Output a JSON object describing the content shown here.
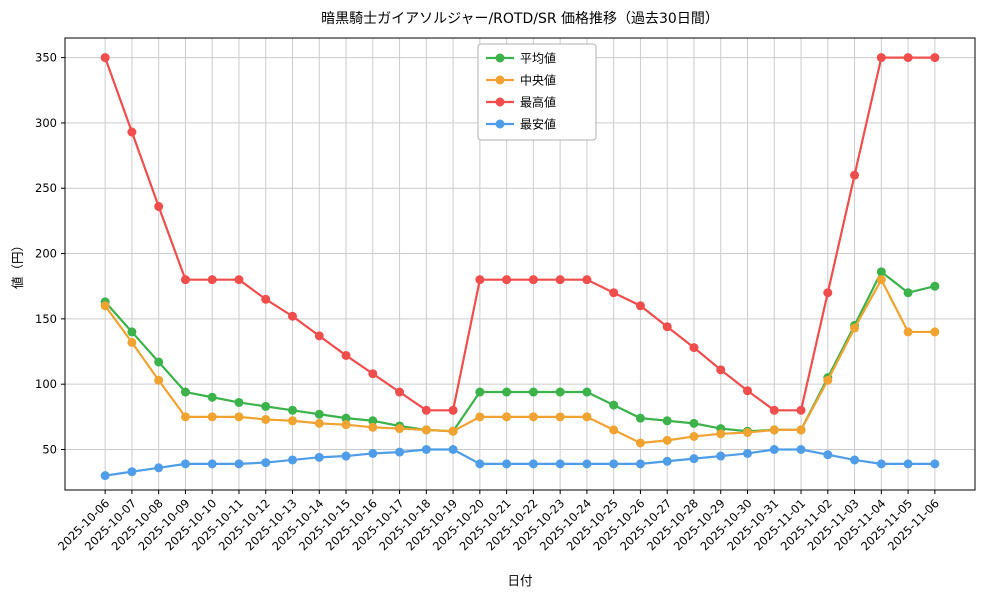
{
  "chart_data": {
    "type": "line",
    "title": "暗黒騎士ガイアソルジャー/ROTD/SR 価格推移（過去30日間）",
    "xlabel": "日付",
    "ylabel": "値（円）",
    "grid": true,
    "grid_color": "#cccccc",
    "axis_color": "#000000",
    "background_color": "#ffffff",
    "legend_position": "upper-center",
    "ylim": [
      19,
      365
    ],
    "yticks": [
      50,
      100,
      150,
      200,
      250,
      300,
      350
    ],
    "x": [
      "2025-10-06",
      "2025-10-07",
      "2025-10-08",
      "2025-10-09",
      "2025-10-10",
      "2025-10-11",
      "2025-10-12",
      "2025-10-13",
      "2025-10-14",
      "2025-10-15",
      "2025-10-16",
      "2025-10-17",
      "2025-10-18",
      "2025-10-19",
      "2025-10-20",
      "2025-10-21",
      "2025-10-22",
      "2025-10-23",
      "2025-10-24",
      "2025-10-25",
      "2025-10-26",
      "2025-10-27",
      "2025-10-28",
      "2025-10-29",
      "2025-10-30",
      "2025-10-31",
      "2025-11-01",
      "2025-11-02",
      "2025-11-03",
      "2025-11-04",
      "2025-11-05",
      "2025-11-06"
    ],
    "series": [
      {
        "key": "avg",
        "name": "平均値",
        "color": "#3bb24a",
        "values": [
          163,
          140,
          117,
          94,
          90,
          86,
          83,
          80,
          77,
          74,
          72,
          68,
          65,
          64,
          94,
          94,
          94,
          94,
          94,
          84,
          74,
          72,
          70,
          66,
          64,
          65,
          65,
          105,
          145,
          186,
          170,
          175
        ]
      },
      {
        "key": "median",
        "name": "中央値",
        "color": "#f0a330",
        "values": [
          160,
          132,
          103,
          75,
          75,
          75,
          73,
          72,
          70,
          69,
          67,
          66,
          65,
          64,
          75,
          75,
          75,
          75,
          75,
          65,
          55,
          57,
          60,
          62,
          63,
          65,
          65,
          103,
          143,
          180,
          140,
          140
        ]
      },
      {
        "key": "max",
        "name": "最高値",
        "color": "#f04d4d",
        "values": [
          350,
          293,
          236,
          180,
          180,
          180,
          165,
          152,
          137,
          122,
          108,
          94,
          80,
          80,
          180,
          180,
          180,
          180,
          180,
          170,
          160,
          144,
          128,
          111,
          95,
          80,
          80,
          170,
          260,
          350,
          350,
          350
        ]
      },
      {
        "key": "min",
        "name": "最安値",
        "color": "#4f9de8",
        "values": [
          30,
          33,
          36,
          39,
          39,
          39,
          40,
          42,
          44,
          45,
          47,
          48,
          50,
          50,
          39,
          39,
          39,
          39,
          39,
          39,
          39,
          41,
          43,
          45,
          47,
          50,
          50,
          46,
          42,
          39,
          39,
          39
        ]
      }
    ]
  }
}
